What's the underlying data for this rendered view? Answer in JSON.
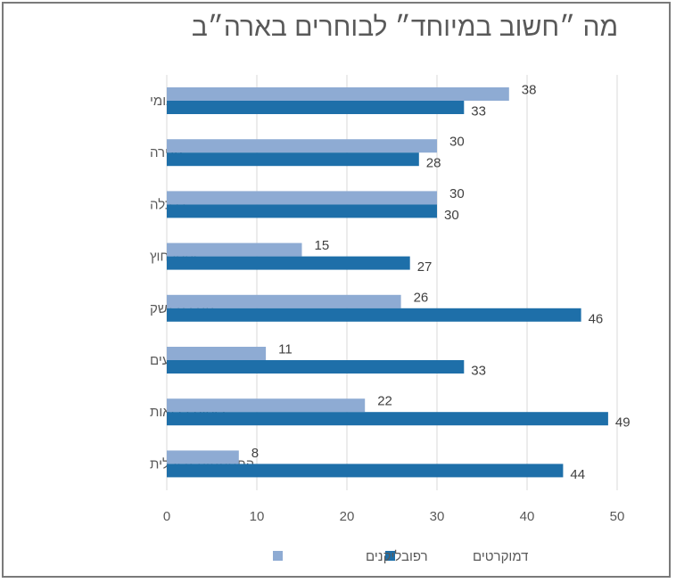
{
  "chart_data": {
    "type": "bar",
    "orientation": "horizontal",
    "title": "מה ״חשוב במיוחד״ לבוחרים בארה״ב",
    "categories": [
      "בטחון לאומי",
      "הגירה",
      "כלכלה",
      "יחסי חוץ",
      "הגבלת נשק",
      "יחסי גזעים",
      "ביטוח בריאות",
      "התחממות גלובלית"
    ],
    "series": [
      {
        "name": "רפובליקנים",
        "color": "#8eabd3",
        "values": [
          38,
          30,
          30,
          15,
          26,
          11,
          22,
          8
        ]
      },
      {
        "name": "דמוקרטים",
        "color": "#1e6fa9",
        "values": [
          33,
          28,
          30,
          27,
          46,
          33,
          49,
          44
        ]
      }
    ],
    "xlim": [
      0,
      50
    ],
    "xticks": [
      0,
      10,
      20,
      30,
      40,
      50
    ],
    "grid": true,
    "data_labels": true,
    "legend": "bottom"
  }
}
